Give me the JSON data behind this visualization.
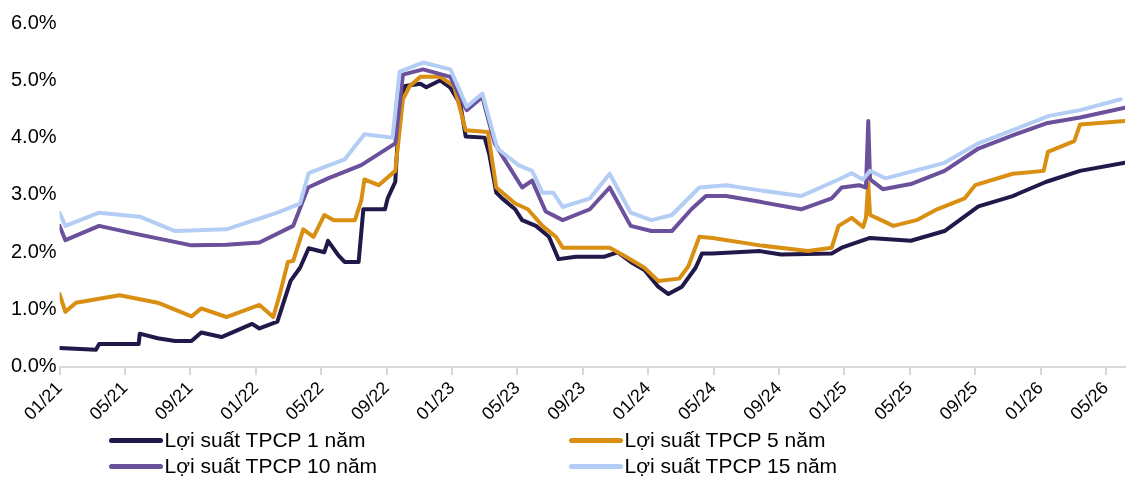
{
  "chart_data": {
    "type": "line",
    "xlim": [
      "2021-01-01",
      "2026-06-06"
    ],
    "ylim": [
      0,
      6
    ],
    "yticks": [
      {
        "value": 0,
        "label": "0.0%"
      },
      {
        "value": 1,
        "label": "1.0%"
      },
      {
        "value": 2,
        "label": "2.0%"
      },
      {
        "value": 3,
        "label": "3.0%"
      },
      {
        "value": 4,
        "label": "4.0%"
      },
      {
        "value": 5,
        "label": "5.0%"
      },
      {
        "value": 6,
        "label": "6.0%"
      }
    ],
    "xticks": [
      {
        "value": "2021-01",
        "label": "01/21"
      },
      {
        "value": "2021-05",
        "label": "05/21"
      },
      {
        "value": "2021-09",
        "label": "09/21"
      },
      {
        "value": "2022-01",
        "label": "01/22"
      },
      {
        "value": "2022-05",
        "label": "05/22"
      },
      {
        "value": "2022-09",
        "label": "09/22"
      },
      {
        "value": "2023-01",
        "label": "01/23"
      },
      {
        "value": "2023-05",
        "label": "05/23"
      },
      {
        "value": "2023-09",
        "label": "09/23"
      },
      {
        "value": "2024-01",
        "label": "01/24"
      },
      {
        "value": "2024-05",
        "label": "05/24"
      },
      {
        "value": "2024-09",
        "label": "09/24"
      },
      {
        "value": "2025-01",
        "label": "01/25"
      },
      {
        "value": "2025-05",
        "label": "05/25"
      },
      {
        "value": "2025-09",
        "label": "09/25"
      },
      {
        "value": "2026-01",
        "label": "01/26"
      },
      {
        "value": "2026-05",
        "label": "05/26"
      }
    ],
    "grid": false,
    "legend": "bottom",
    "marker": "none",
    "line_style": "solid",
    "series": [
      {
        "name": "Lợi suất TPCP 1 năm",
        "color": "#22184a",
        "x": [
          "2021-01-01",
          "2021-03-08",
          "2021-03-14",
          "2021-05-27",
          "2021-05-29",
          "2021-07-01",
          "2021-08-03",
          "2021-09-03",
          "2021-09-21",
          "2021-10-29",
          "2021-12-25",
          "2022-01-08",
          "2022-02-10",
          "2022-03-05",
          "2022-03-23",
          "2022-04-08",
          "2022-05-07",
          "2022-05-14",
          "2022-06-03",
          "2022-06-14",
          "2022-07-10",
          "2022-07-19",
          "2022-08-29",
          "2022-09-03",
          "2022-09-17",
          "2022-09-25",
          "2022-10-05",
          "2022-11-03",
          "2022-11-14",
          "2022-12-10",
          "2022-12-29",
          "2023-01-17",
          "2023-01-27",
          "2023-03-01",
          "2023-03-10",
          "2023-03-23",
          "2023-04-03",
          "2023-04-27",
          "2023-05-10",
          "2023-06-05",
          "2023-06-29",
          "2023-07-17",
          "2023-08-19",
          "2023-10-10",
          "2023-11-05",
          "2023-11-29",
          "2023-12-25",
          "2024-01-20",
          "2024-02-08",
          "2024-03-03",
          "2024-03-29",
          "2024-04-10",
          "2024-04-29",
          "2024-07-27",
          "2024-09-05",
          "2024-12-08",
          "2024-12-27",
          "2025-02-17",
          "2025-05-03",
          "2025-07-05",
          "2025-09-07",
          "2025-11-10",
          "2026-01-12",
          "2026-03-14",
          "2026-06-06"
        ],
        "values": [
          0.33,
          0.3,
          0.4,
          0.4,
          0.58,
          0.5,
          0.45,
          0.45,
          0.6,
          0.52,
          0.75,
          0.67,
          0.79,
          1.5,
          1.73,
          2.07,
          2.0,
          2.2,
          1.94,
          1.83,
          1.83,
          2.75,
          2.75,
          2.94,
          3.23,
          4.6,
          4.9,
          4.94,
          4.88,
          5.0,
          4.87,
          4.58,
          4.02,
          4.0,
          3.7,
          3.04,
          2.94,
          2.75,
          2.56,
          2.46,
          2.27,
          1.88,
          1.92,
          1.92,
          2.0,
          1.83,
          1.69,
          1.4,
          1.27,
          1.4,
          1.73,
          1.98,
          1.98,
          2.02,
          1.96,
          1.98,
          2.08,
          2.25,
          2.2,
          2.37,
          2.8,
          2.98,
          3.23,
          3.42,
          3.56
        ]
      },
      {
        "name": "Lợi suất TPCP 5 năm",
        "color": "#d98f12",
        "x": [
          "2021-01-01",
          "2021-01-12",
          "2021-02-01",
          "2021-04-21",
          "2021-07-01",
          "2021-09-03",
          "2021-09-21",
          "2021-11-07",
          "2022-01-08",
          "2022-02-03",
          "2022-02-15",
          "2022-02-28",
          "2022-03-10",
          "2022-03-29",
          "2022-04-17",
          "2022-05-07",
          "2022-05-25",
          "2022-07-03",
          "2022-07-15",
          "2022-07-21",
          "2022-08-17",
          "2022-09-17",
          "2022-10-01",
          "2022-10-14",
          "2022-11-03",
          "2022-12-10",
          "2023-01-05",
          "2023-01-27",
          "2023-03-07",
          "2023-03-23",
          "2023-04-27",
          "2023-05-21",
          "2023-06-17",
          "2023-07-12",
          "2023-07-25",
          "2023-10-21",
          "2023-11-17",
          "2023-12-25",
          "2024-01-20",
          "2024-02-27",
          "2024-03-15",
          "2024-04-05",
          "2024-04-29",
          "2024-07-27",
          "2024-10-25",
          "2024-12-08",
          "2024-12-21",
          "2025-01-15",
          "2025-02-05",
          "2025-02-10",
          "2025-02-14",
          "2025-02-17",
          "2025-02-28",
          "2025-04-01",
          "2025-05-14",
          "2025-06-21",
          "2025-08-12",
          "2025-09-01",
          "2025-11-10",
          "2026-01-07",
          "2026-01-15",
          "2026-03-03",
          "2026-03-14",
          "2026-06-06"
        ],
        "values": [
          1.27,
          0.96,
          1.12,
          1.25,
          1.12,
          0.88,
          1.02,
          0.87,
          1.08,
          0.87,
          1.3,
          1.83,
          1.85,
          2.4,
          2.27,
          2.65,
          2.56,
          2.56,
          2.9,
          3.27,
          3.17,
          3.42,
          4.67,
          4.9,
          5.06,
          5.06,
          4.9,
          4.13,
          4.1,
          3.13,
          2.85,
          2.75,
          2.46,
          2.27,
          2.08,
          2.08,
          1.94,
          1.73,
          1.5,
          1.54,
          1.75,
          2.27,
          2.25,
          2.12,
          2.02,
          2.08,
          2.46,
          2.6,
          2.44,
          2.6,
          3.2,
          2.65,
          2.6,
          2.46,
          2.56,
          2.75,
          2.94,
          3.17,
          3.37,
          3.42,
          3.75,
          3.94,
          4.23,
          4.29
        ]
      },
      {
        "name": "Lợi suất TPCP 10 năm",
        "color": "#6b509c",
        "x": [
          "2021-01-01",
          "2021-01-12",
          "2021-03-14",
          "2021-05-17",
          "2021-09-03",
          "2021-11-07",
          "2022-01-08",
          "2022-03-10",
          "2022-04-07",
          "2022-05-14",
          "2022-07-15",
          "2022-09-17",
          "2022-10-01",
          "2022-11-08",
          "2022-12-29",
          "2023-01-29",
          "2023-02-25",
          "2023-03-20",
          "2023-04-14",
          "2023-05-10",
          "2023-05-29",
          "2023-06-23",
          "2023-07-25",
          "2023-09-14",
          "2023-10-21",
          "2023-11-29",
          "2024-01-07",
          "2024-02-14",
          "2024-03-21",
          "2024-04-17",
          "2024-05-25",
          "2024-07-27",
          "2024-10-12",
          "2024-12-08",
          "2024-12-27",
          "2025-01-29",
          "2025-02-10",
          "2025-02-14",
          "2025-02-17",
          "2025-03-12",
          "2025-05-03",
          "2025-07-05",
          "2025-09-07",
          "2025-11-10",
          "2026-01-12",
          "2026-03-14",
          "2026-06-06"
        ],
        "values": [
          2.46,
          2.21,
          2.46,
          2.33,
          2.12,
          2.13,
          2.17,
          2.46,
          3.13,
          3.29,
          3.52,
          3.9,
          5.1,
          5.19,
          5.06,
          4.48,
          4.71,
          3.9,
          3.52,
          3.13,
          3.25,
          2.71,
          2.56,
          2.75,
          3.13,
          2.46,
          2.37,
          2.37,
          2.75,
          2.98,
          2.98,
          2.88,
          2.75,
          2.94,
          3.13,
          3.17,
          3.13,
          4.29,
          3.27,
          3.1,
          3.19,
          3.42,
          3.81,
          4.04,
          4.25,
          4.35,
          4.52
        ]
      },
      {
        "name": "Lợi suất TPCP 15 năm",
        "color": "#b4cdf5",
        "x": [
          "2021-01-01",
          "2021-01-12",
          "2021-03-14",
          "2021-05-29",
          "2021-08-03",
          "2021-11-07",
          "2022-02-10",
          "2022-03-23",
          "2022-04-08",
          "2022-06-14",
          "2022-07-21",
          "2022-09-12",
          "2022-09-25",
          "2022-11-08",
          "2022-12-29",
          "2023-01-29",
          "2023-02-25",
          "2023-03-25",
          "2023-05-03",
          "2023-05-29",
          "2023-06-17",
          "2023-07-07",
          "2023-07-25",
          "2023-09-14",
          "2023-10-21",
          "2023-11-29",
          "2024-01-07",
          "2024-02-14",
          "2024-04-05",
          "2024-05-25",
          "2024-07-27",
          "2024-10-12",
          "2024-12-21",
          "2025-01-15",
          "2025-02-05",
          "2025-02-17",
          "2025-03-17",
          "2025-07-05",
          "2025-09-07",
          "2025-11-10",
          "2026-01-17",
          "2026-03-14",
          "2026-05-29"
        ],
        "values": [
          2.69,
          2.46,
          2.69,
          2.62,
          2.37,
          2.4,
          2.69,
          2.85,
          3.38,
          3.62,
          4.06,
          4.0,
          5.15,
          5.31,
          5.19,
          4.54,
          4.77,
          3.81,
          3.52,
          3.42,
          3.04,
          3.04,
          2.79,
          2.94,
          3.37,
          2.69,
          2.56,
          2.65,
          3.13,
          3.17,
          3.08,
          2.98,
          3.27,
          3.38,
          3.27,
          3.42,
          3.29,
          3.56,
          3.9,
          4.13,
          4.38,
          4.48,
          4.67
        ]
      }
    ]
  }
}
